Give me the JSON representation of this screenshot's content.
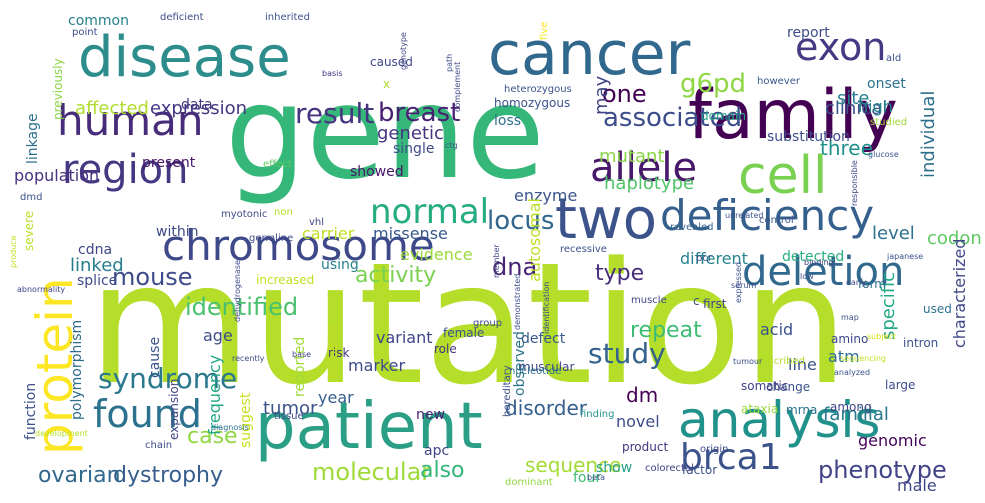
{
  "words": [
    {
      "text": "mutation",
      "color": "#b5de2b"
    },
    {
      "text": "gene",
      "color": "#35b779"
    },
    {
      "text": "patient",
      "color": "#2a9f86"
    },
    {
      "text": "cancer",
      "color": "#31688e"
    },
    {
      "text": "disease",
      "color": "#2c8d8c"
    },
    {
      "text": "family",
      "color": "#440154"
    },
    {
      "text": "protein",
      "color": "#fde725"
    },
    {
      "text": "cell",
      "color": "#7ad151"
    },
    {
      "text": "analysis",
      "color": "#21918c"
    },
    {
      "text": "deficiency",
      "color": "#355f8d"
    },
    {
      "text": "two",
      "color": "#3b528b"
    },
    {
      "text": "human",
      "color": "#472c7a"
    },
    {
      "text": "chromosome",
      "color": "#3e4989"
    },
    {
      "text": "allele",
      "color": "#48186a"
    },
    {
      "text": "region",
      "color": "#453781"
    },
    {
      "text": "deletion",
      "color": "#31688e"
    },
    {
      "text": "found",
      "color": "#2c728e"
    },
    {
      "text": "exon",
      "color": "#443a83"
    },
    {
      "text": "normal",
      "color": "#25ac82"
    },
    {
      "text": "brca1",
      "color": "#3b528b"
    },
    {
      "text": "disease",
      "color": "#2c8d8c"
    },
    {
      "text": "result",
      "color": "#46337f"
    },
    {
      "text": "breast",
      "color": "#482173"
    },
    {
      "text": "associated",
      "color": "#3d4d8a"
    },
    {
      "text": "syndrome",
      "color": "#2a788e"
    },
    {
      "text": "identified",
      "color": "#4ac16d"
    },
    {
      "text": "mouse",
      "color": "#3e4a89"
    },
    {
      "text": "study",
      "color": "#33638d"
    },
    {
      "text": "locus",
      "color": "#31678e"
    },
    {
      "text": "dna",
      "color": "#482475"
    },
    {
      "text": "one",
      "color": "#440154"
    },
    {
      "text": "g6pd",
      "color": "#8fd744"
    },
    {
      "text": "phenotype",
      "color": "#414487"
    },
    {
      "text": "case",
      "color": "#90d743"
    },
    {
      "text": "dystrophy",
      "color": "#355e8d"
    },
    {
      "text": "ovarian",
      "color": "#31688e"
    },
    {
      "text": "molecular",
      "color": "#a0da39"
    },
    {
      "text": "also",
      "color": "#35b779"
    },
    {
      "text": "sequence",
      "color": "#a5db36"
    },
    {
      "text": "tumor",
      "color": "#3b528b"
    },
    {
      "text": "disorder",
      "color": "#355f8d"
    },
    {
      "text": "dm",
      "color": "#440154"
    },
    {
      "text": "repeat",
      "color": "#3dbc74"
    },
    {
      "text": "type",
      "color": "#472d7b"
    },
    {
      "text": "activity",
      "color": "#7ad151"
    },
    {
      "text": "expression",
      "color": "#453781"
    },
    {
      "text": "genetic",
      "color": "#46337f"
    },
    {
      "text": "may",
      "color": "#414487"
    },
    {
      "text": "clinical",
      "color": "#3b528b"
    },
    {
      "text": "three",
      "color": "#21918c"
    },
    {
      "text": "site",
      "color": "#26818e"
    },
    {
      "text": "mutant",
      "color": "#8bd646"
    },
    {
      "text": "haplotype",
      "color": "#52c569"
    },
    {
      "text": "linked",
      "color": "#287c8e"
    },
    {
      "text": "affected",
      "color": "#b0dd2f"
    },
    {
      "text": "level",
      "color": "#2d718e"
    },
    {
      "text": "individual",
      "color": "#2e6f8e"
    },
    {
      "text": "codon",
      "color": "#5ec962"
    },
    {
      "text": "specific",
      "color": "#22a884"
    },
    {
      "text": "characterized",
      "color": "#3f4788"
    },
    {
      "text": "familial",
      "color": "#2a788e"
    },
    {
      "text": "genomic",
      "color": "#450457"
    },
    {
      "text": "male",
      "color": "#3f4889"
    },
    {
      "text": "atm",
      "color": "#2e6e8e"
    },
    {
      "text": "line",
      "color": "#3a548c"
    },
    {
      "text": "report",
      "color": "#3d4e8a"
    },
    {
      "text": "onset",
      "color": "#2c728e"
    },
    {
      "text": "high",
      "color": "#25848e"
    },
    {
      "text": "enzyme",
      "color": "#3a548c"
    },
    {
      "text": "autosomal",
      "color": "#bddf26"
    },
    {
      "text": "carrier",
      "color": "#c2df23"
    },
    {
      "text": "missense",
      "color": "#38588c"
    },
    {
      "text": "using",
      "color": "#277f8e"
    },
    {
      "text": "within",
      "color": "#3e4a89"
    },
    {
      "text": "population",
      "color": "#46327e"
    },
    {
      "text": "present",
      "color": "#471365"
    },
    {
      "text": "showed",
      "color": "#481769"
    },
    {
      "text": "evidence",
      "color": "#9bd93c"
    },
    {
      "text": "different",
      "color": "#25838e"
    },
    {
      "text": "detected",
      "color": "#29af7f"
    },
    {
      "text": "cdna",
      "color": "#3f4788"
    },
    {
      "text": "splice",
      "color": "#3e4a89"
    },
    {
      "text": "age",
      "color": "#3e4c8a"
    },
    {
      "text": "frequency",
      "color": "#22a785"
    },
    {
      "text": "polymorphism",
      "color": "#2f6c8e"
    },
    {
      "text": "cause",
      "color": "#3b528b"
    },
    {
      "text": "reported",
      "color": "#a2da37"
    },
    {
      "text": "year",
      "color": "#355e8d"
    },
    {
      "text": "marker",
      "color": "#3e4989"
    },
    {
      "text": "variant",
      "color": "#404588"
    },
    {
      "text": "acid",
      "color": "#3b518b"
    },
    {
      "text": "observed",
      "color": "#2b748e"
    },
    {
      "text": "defect",
      "color": "#38598c"
    },
    {
      "text": "new",
      "color": "#482374"
    },
    {
      "text": "novel",
      "color": "#3d4d8a"
    },
    {
      "text": "suggest",
      "color": "#c8e020"
    },
    {
      "text": "function",
      "color": "#3b528b"
    },
    {
      "text": "severe",
      "color": "#bade28"
    },
    {
      "text": "linkage",
      "color": "#2d708e"
    },
    {
      "text": "common",
      "color": "#277f8e"
    },
    {
      "text": "previously",
      "color": "#8bd646"
    },
    {
      "text": "data",
      "color": "#453882"
    },
    {
      "text": "single",
      "color": "#3e4c8a"
    },
    {
      "text": "caused",
      "color": "#3f4788"
    },
    {
      "text": "x",
      "color": "#addc30"
    },
    {
      "text": "loss",
      "color": "#2e6f8e"
    },
    {
      "text": "homozygous",
      "color": "#3b528b"
    },
    {
      "text": "heterozygous",
      "color": "#3a538b"
    },
    {
      "text": "domain",
      "color": "#21a685"
    },
    {
      "text": "however",
      "color": "#39568c"
    },
    {
      "text": "substitution",
      "color": "#3e4c8a"
    },
    {
      "text": "increased",
      "color": "#c2df23"
    },
    {
      "text": "risk",
      "color": "#46337f"
    },
    {
      "text": "hereditary",
      "color": "#3c4f8a"
    },
    {
      "text": "show",
      "color": "#2a9f86"
    },
    {
      "text": "factor",
      "color": "#3b528b"
    },
    {
      "text": "four",
      "color": "#3dbc74"
    },
    {
      "text": "chain",
      "color": "#3e4c8a"
    },
    {
      "text": "apc",
      "color": "#3f4788"
    },
    {
      "text": "amino",
      "color": "#3e4989"
    },
    {
      "text": "change",
      "color": "#3b528b"
    },
    {
      "text": "mrna",
      "color": "#2c728e"
    },
    {
      "text": "somatic",
      "color": "#424086"
    },
    {
      "text": "muscular",
      "color": "#404588"
    },
    {
      "text": "female",
      "color": "#3b528b"
    },
    {
      "text": "role",
      "color": "#46327e"
    },
    {
      "text": "expansion",
      "color": "#414487"
    },
    {
      "text": "form",
      "color": "#2d708e"
    },
    {
      "text": "intron",
      "color": "#3b528b"
    },
    {
      "text": "large",
      "color": "#3e4c8a"
    },
    {
      "text": "used",
      "color": "#2c728e"
    },
    {
      "text": "among",
      "color": "#414487"
    },
    {
      "text": "product",
      "color": "#46337f"
    },
    {
      "text": "ataxia",
      "color": "#9bd93c"
    },
    {
      "text": "tissue",
      "color": "#3e4989"
    },
    {
      "text": "including",
      "color": "#c2df23"
    },
    {
      "text": "germline",
      "color": "#3f4889"
    },
    {
      "text": "effect",
      "color": "#5ec962"
    },
    {
      "text": "dmd",
      "color": "#3b528b"
    },
    {
      "text": "myotonic",
      "color": "#3e4c8a"
    },
    {
      "text": "non",
      "color": "#b5de2b"
    },
    {
      "text": "vhl",
      "color": "#3f4788"
    },
    {
      "text": "recessive",
      "color": "#3b528b"
    },
    {
      "text": "revealed",
      "color": "#33638d"
    },
    {
      "text": "muscle",
      "color": "#404588"
    },
    {
      "text": "pcr",
      "color": "#3b528b"
    },
    {
      "text": "first",
      "color": "#414487"
    },
    {
      "text": "c",
      "color": "#3e4c8a"
    },
    {
      "text": "control",
      "color": "#39568c"
    },
    {
      "text": "unrelated",
      "color": "#3b528b"
    },
    {
      "text": "nucleotide",
      "color": "#2c728e"
    },
    {
      "text": "finding",
      "color": "#21918c"
    },
    {
      "text": "described",
      "color": "#b5de2b"
    },
    {
      "text": "origin",
      "color": "#3e4c8a"
    },
    {
      "text": "colorectal",
      "color": "#414487"
    },
    {
      "text": "dominant",
      "color": "#90d743"
    },
    {
      "text": "analyzed",
      "color": "#3b528b"
    },
    {
      "text": "sequencing",
      "color": "#c2df23"
    },
    {
      "text": "subject",
      "color": "#d8e219"
    },
    {
      "text": "deficient",
      "color": "#3e4c8a"
    },
    {
      "text": "inherited",
      "color": "#3b528b"
    },
    {
      "text": "five",
      "color": "#fde725"
    },
    {
      "text": "ald",
      "color": "#3b528b"
    },
    {
      "text": "point",
      "color": "#3e4c8a"
    },
    {
      "text": "genotype",
      "color": "#414487"
    },
    {
      "text": "basis",
      "color": "#46337f"
    },
    {
      "text": "studied",
      "color": "#a0da39"
    },
    {
      "text": "glucose",
      "color": "#3b528b"
    },
    {
      "text": "early",
      "color": "#3e4c8a"
    },
    {
      "text": "japanese",
      "color": "#3b528b"
    },
    {
      "text": "binding",
      "color": "#414487"
    },
    {
      "text": "low",
      "color": "#3b528b"
    },
    {
      "text": "serum",
      "color": "#3e4c8a"
    },
    {
      "text": "tumour",
      "color": "#3b528b"
    },
    {
      "text": "base",
      "color": "#414487"
    },
    {
      "text": "recently",
      "color": "#3e4c8a"
    },
    {
      "text": "diagnosis",
      "color": "#2c728e"
    },
    {
      "text": "development",
      "color": "#b5de2b"
    },
    {
      "text": "beta",
      "color": "#3b528b"
    },
    {
      "text": "dehydrogenase",
      "color": "#3e4c8a"
    },
    {
      "text": "abnormality",
      "color": "#414487"
    },
    {
      "text": "identification",
      "color": "#3b528b"
    },
    {
      "text": "demonstrated",
      "color": "#3e4c8a"
    },
    {
      "text": "member",
      "color": "#414487"
    },
    {
      "text": "group",
      "color": "#3e4c8a"
    },
    {
      "text": "expressed",
      "color": "#3b528b"
    },
    {
      "text": "responsible",
      "color": "#414487"
    },
    {
      "text": "complement",
      "color": "#3e4c8a"
    },
    {
      "text": "ctg",
      "color": "#3b528b"
    },
    {
      "text": "path",
      "color": "#3e4c8a"
    },
    {
      "text": "map",
      "color": "#3b528b"
    },
    {
      "text": "produce",
      "color": "#c2df23"
    }
  ]
}
